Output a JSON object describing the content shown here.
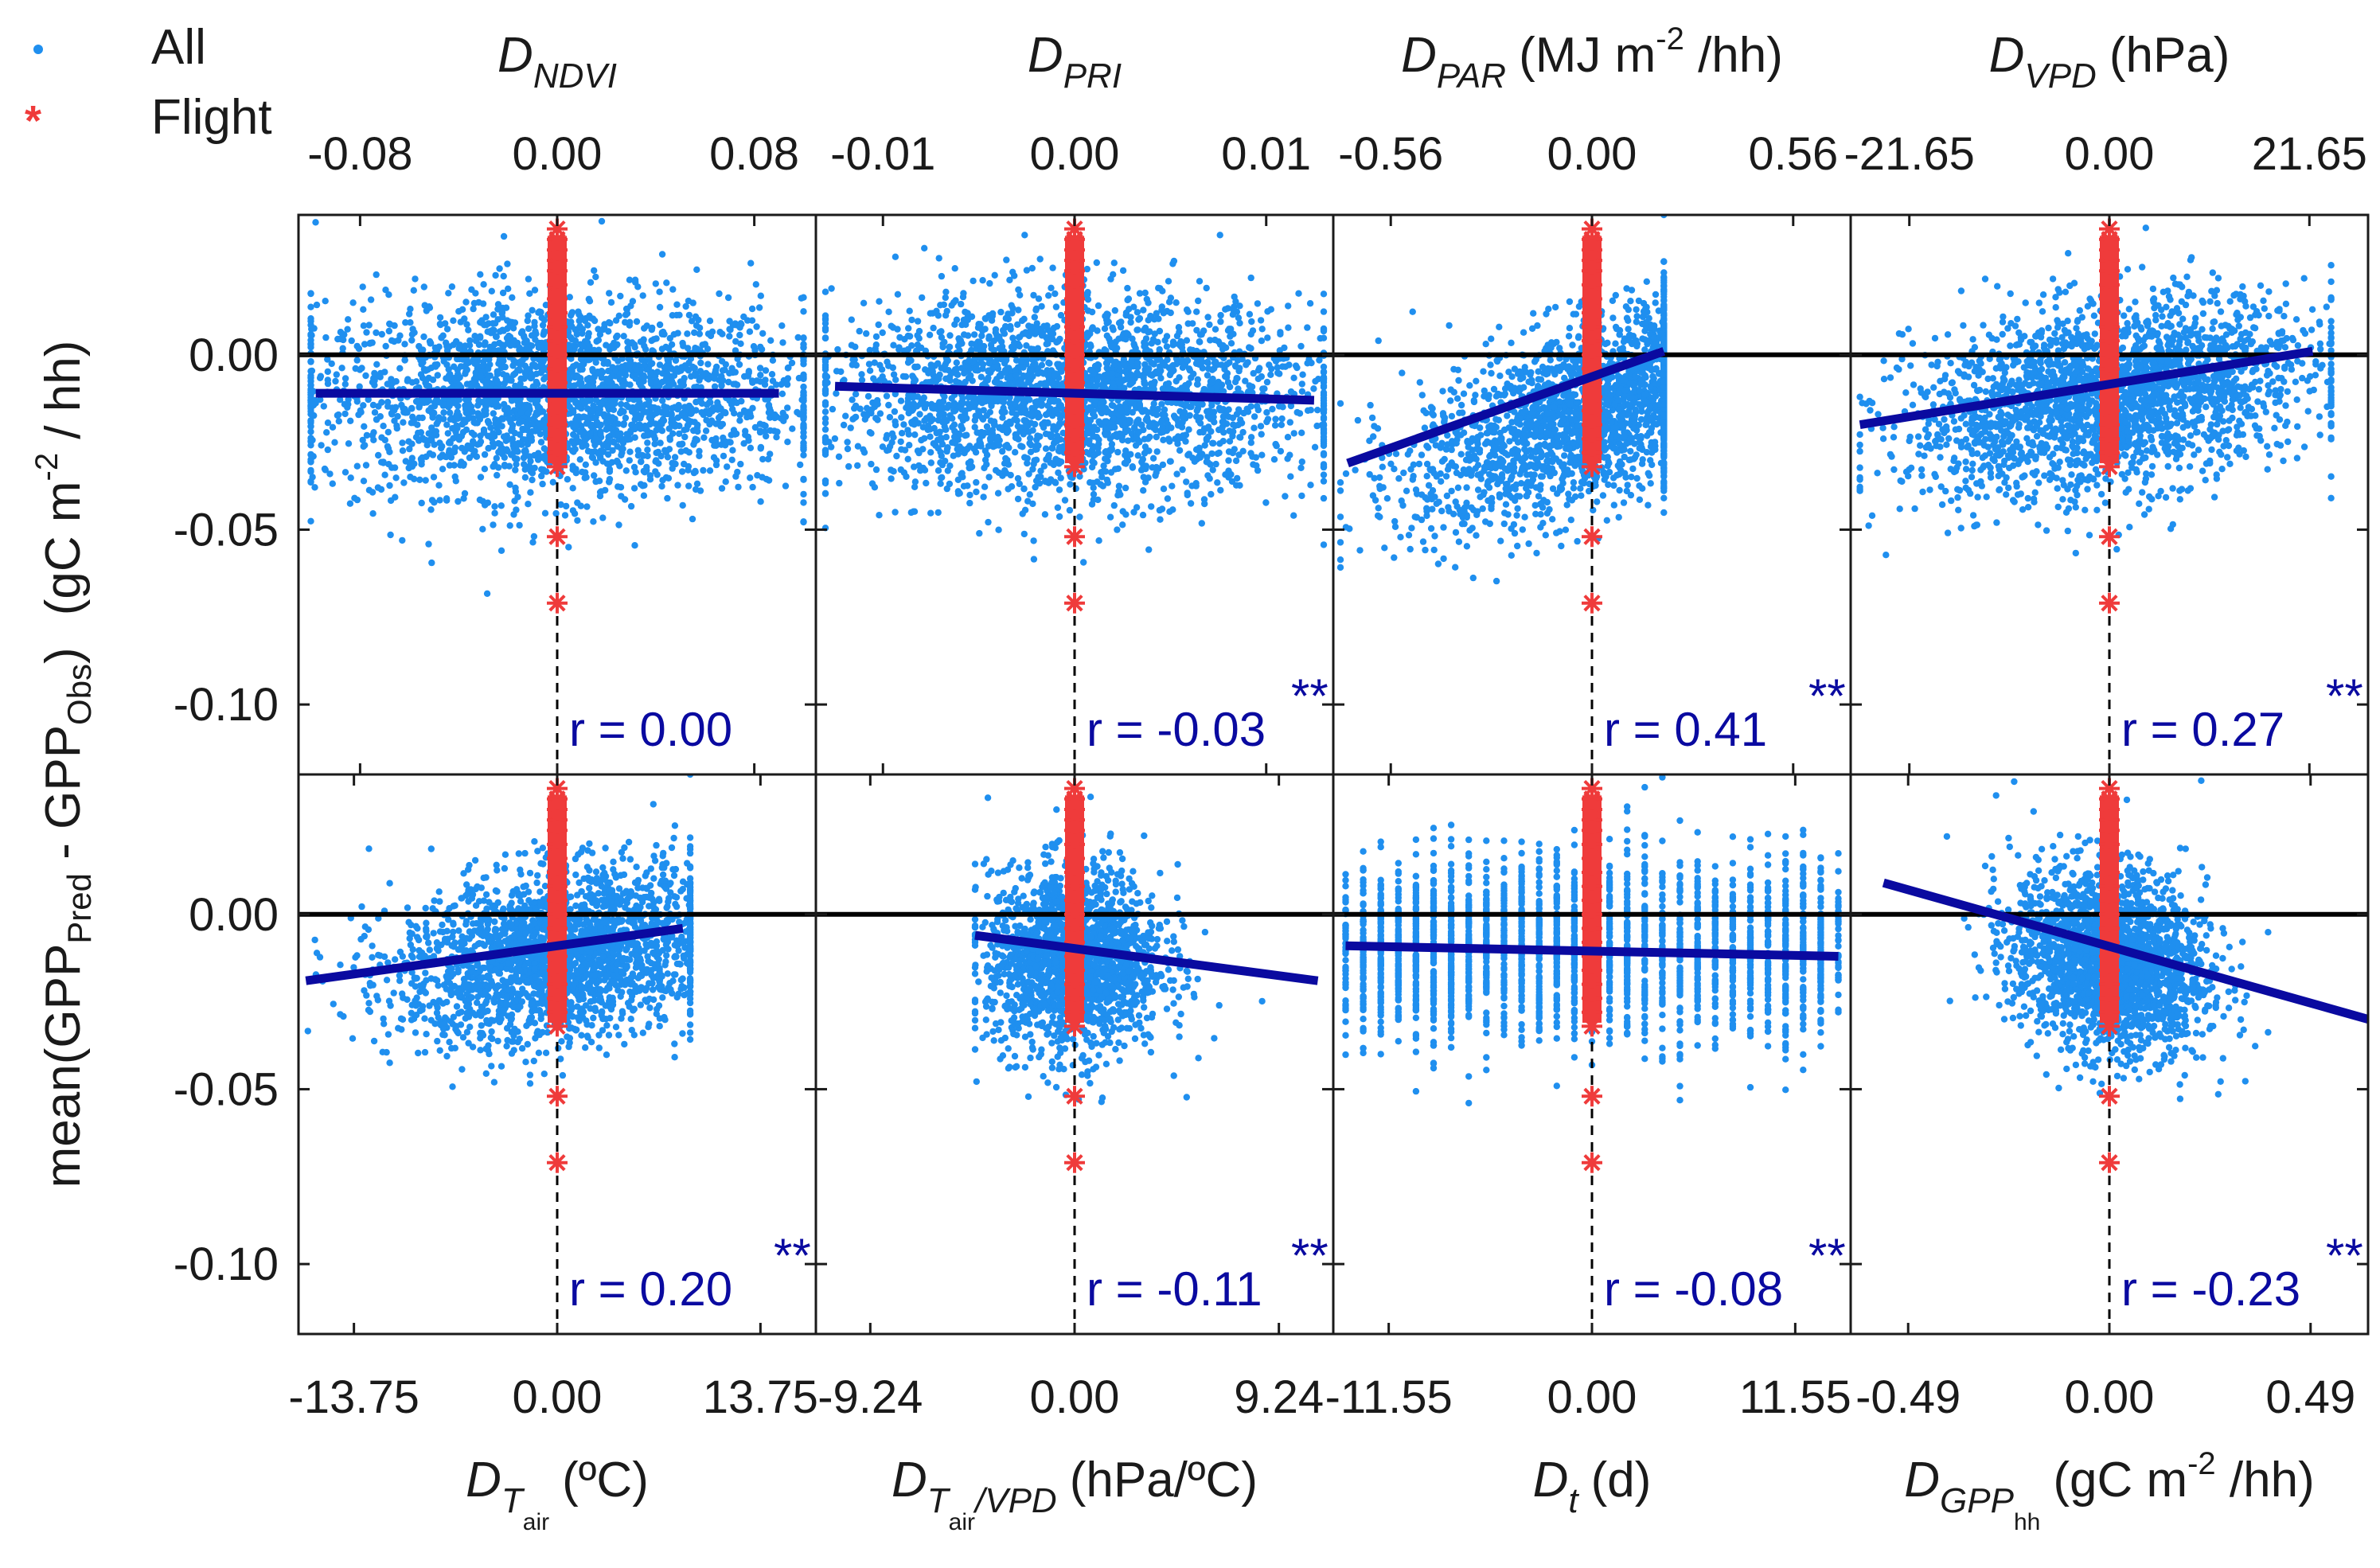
{
  "legend": {
    "items": [
      {
        "label": "All",
        "marker": "dot",
        "color": "#1f8fef"
      },
      {
        "label": "Flight",
        "marker": "asterisk",
        "color": "#ef3b3b"
      }
    ]
  },
  "colors": {
    "all": "#1f8fef",
    "flight": "#ef3b3b",
    "fit": "#0a0aa0",
    "axis": "#1a1a1a"
  },
  "ylabel": {
    "pre": "mean(GPP",
    "sub1": "Pred",
    "mid": " - GPP",
    "sub2": "Obs",
    "post": ")",
    "unit_pre": "(gC m",
    "unit_sup": "-2",
    "unit_post": " / hh)"
  },
  "y_ticks": [
    "0.00",
    "-0.05",
    "-0.10"
  ],
  "sig_marker": "**",
  "chart_data": {
    "type": "scatter",
    "y_axis": {
      "label": "mean(GPP_Pred - GPP_Obs) (gC m-2 / hh)",
      "ylim": [
        -0.12,
        0.04
      ],
      "ticks": [
        0.0,
        -0.05,
        -0.1
      ]
    },
    "panels": [
      {
        "row": 0,
        "col": 0,
        "variable": "D_NDVI",
        "x_label": {
          "main": "D",
          "sub": "NDVI",
          "unit": ""
        },
        "x_ticks": [
          "-0.08",
          "0.00",
          "0.08"
        ],
        "xlim": [
          -0.105,
          0.105
        ],
        "r_text": "r = 0.00",
        "sig": "",
        "fit": {
          "x": [
            -0.098,
            0.09
          ],
          "y": [
            -0.011,
            -0.011
          ]
        },
        "cloud": {
          "x_range": [
            -0.1,
            0.1
          ],
          "spread": 0.055,
          "center_y": -0.012,
          "sd_y": 0.014,
          "n": 2600,
          "discrete": false
        }
      },
      {
        "row": 0,
        "col": 1,
        "variable": "D_PRI",
        "x_label": {
          "main": "D",
          "sub": "PRI",
          "unit": ""
        },
        "x_ticks": [
          "-0.01",
          "0.00",
          "0.01"
        ],
        "xlim": [
          -0.0135,
          0.0135
        ],
        "r_text": "r = -0.03",
        "sig": "**",
        "fit": {
          "x": [
            -0.0125,
            0.0125
          ],
          "y": [
            -0.009,
            -0.013
          ]
        },
        "cloud": {
          "x_range": [
            -0.013,
            0.013
          ],
          "spread": 0.007,
          "center_y": -0.012,
          "sd_y": 0.014,
          "n": 2600,
          "discrete": false
        }
      },
      {
        "row": 0,
        "col": 2,
        "variable": "D_PAR",
        "x_label": {
          "main": "D",
          "sub": "PAR",
          "unit": "(MJ m-2 /hh)",
          "unit_pre": "(MJ m",
          "unit_sup": "-2",
          "unit_post": " /hh)"
        },
        "x_ticks": [
          "-0.56",
          "0.00",
          "0.56"
        ],
        "xlim": [
          -0.72,
          0.72
        ],
        "r_text": "r = 0.41",
        "sig": "**",
        "fit": {
          "x": [
            -0.68,
            0.2
          ],
          "y": [
            -0.031,
            0.001
          ]
        },
        "cloud": {
          "x_range": [
            -0.7,
            0.2
          ],
          "spread": 0.28,
          "center_y": -0.016,
          "sd_y": 0.013,
          "n": 2200,
          "discrete": false,
          "slope": 0.0361
        }
      },
      {
        "row": 0,
        "col": 3,
        "variable": "D_VPD",
        "x_label": {
          "main": "D",
          "sub": "VPD",
          "unit": "(hPa)"
        },
        "x_ticks": [
          "-21.65",
          "0.00",
          "21.65"
        ],
        "xlim": [
          -28.0,
          28.0
        ],
        "r_text": "r = 0.27",
        "sig": "**",
        "fit": {
          "x": [
            -27.0,
            22.0
          ],
          "y": [
            -0.02,
            0.001
          ]
        },
        "cloud": {
          "x_range": [
            -27.0,
            24.0
          ],
          "spread": 12.0,
          "center_y": -0.012,
          "sd_y": 0.013,
          "n": 2400,
          "discrete": false,
          "slope": 0.00043
        }
      },
      {
        "row": 1,
        "col": 0,
        "variable": "D_Tair",
        "x_label": {
          "main": "D",
          "sub": "T",
          "subsub": "air",
          "unit": "(ºC)"
        },
        "x_ticks": [
          "-13.75",
          "0.00",
          "13.75"
        ],
        "xlim": [
          -17.5,
          17.5
        ],
        "r_text": "r = 0.20",
        "sig": "**",
        "fit": {
          "x": [
            -17.0,
            8.5
          ],
          "y": [
            -0.019,
            -0.004
          ]
        },
        "cloud": {
          "x_range": [
            -17.0,
            9.0
          ],
          "spread": 6.0,
          "center_y": -0.012,
          "sd_y": 0.012,
          "n": 2300,
          "discrete": false,
          "slope": 0.00059
        }
      },
      {
        "row": 1,
        "col": 1,
        "variable": "D_Tair/VPD",
        "x_label": {
          "main": "D",
          "sub": "T",
          "subsub": "air",
          "sub2": "/VPD",
          "unit": "(hPa/ºC)"
        },
        "x_ticks": [
          "-9.24",
          "0.00",
          "9.24"
        ],
        "xlim": [
          -11.7,
          11.7
        ],
        "r_text": "r = -0.11",
        "sig": "**",
        "fit": {
          "x": [
            -4.5,
            11.0
          ],
          "y": [
            -0.006,
            -0.019
          ]
        },
        "cloud": {
          "x_range": [
            -4.5,
            11.0
          ],
          "spread": 2.2,
          "center_y": -0.013,
          "sd_y": 0.013,
          "n": 1800,
          "discrete": false
        }
      },
      {
        "row": 1,
        "col": 2,
        "variable": "D_t",
        "x_label": {
          "main": "D",
          "sub": "t",
          "unit": "(d)"
        },
        "x_ticks": [
          "-11.55",
          "0.00",
          "11.55"
        ],
        "xlim": [
          -14.7,
          14.7
        ],
        "r_text": "r = -0.08",
        "sig": "**",
        "fit": {
          "x": [
            -14.0,
            14.0
          ],
          "y": [
            -0.009,
            -0.012
          ]
        },
        "cloud": {
          "x_range": [
            -14.0,
            14.0
          ],
          "spread": 0,
          "center_y": -0.01,
          "sd_y": 0.013,
          "n": 2600,
          "discrete": true
        }
      },
      {
        "row": 1,
        "col": 3,
        "variable": "D_GPP_hh",
        "x_label": {
          "main": "D",
          "sub": "GPP",
          "subsub": "hh",
          "unit": "(gC m-2 /hh)",
          "unit_pre": "(gC m",
          "unit_sup": "-2",
          "unit_post": " /hh)"
        },
        "x_ticks": [
          "-0.49",
          "0.00",
          "0.49"
        ],
        "xlim": [
          -0.63,
          0.63
        ],
        "r_text": "r = -0.23",
        "sig": "**",
        "fit": {
          "x": [
            -0.55,
            0.63
          ],
          "y": [
            0.009,
            -0.03
          ]
        },
        "cloud": {
          "x_range": [
            -0.55,
            0.4
          ],
          "spread": 0.13,
          "center_y": -0.013,
          "sd_y": 0.013,
          "n": 2200,
          "discrete": false,
          "slope": -0.02
        }
      }
    ],
    "flight_points_y": [
      0.036,
      0.033,
      0.03,
      0.027,
      0.024,
      0.02,
      0.016,
      0.012,
      0.008,
      0.004,
      0.0,
      -0.004,
      -0.008,
      -0.012,
      -0.016,
      -0.02,
      -0.024,
      -0.028,
      -0.032,
      -0.052,
      -0.071
    ]
  }
}
